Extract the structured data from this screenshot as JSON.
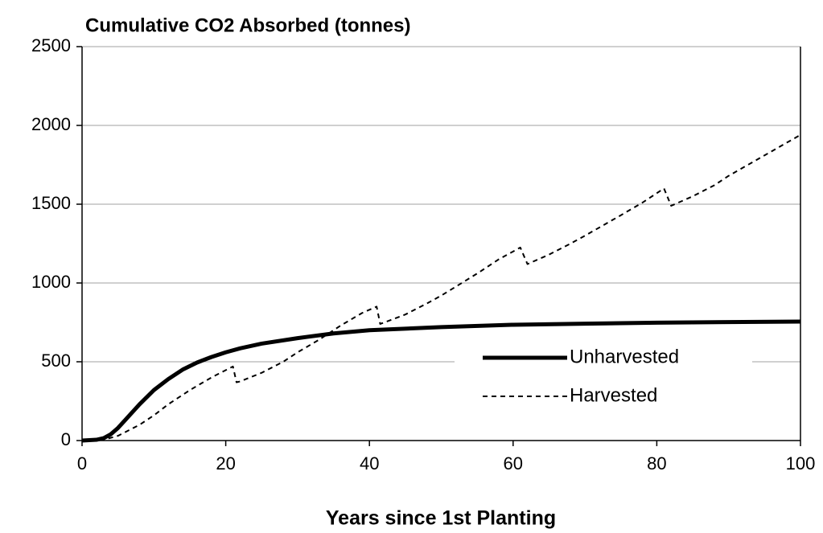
{
  "chart_data": {
    "type": "line",
    "title": "Cumulative CO2 Absorbed (tonnes)",
    "x_label": "Years since 1st Planting",
    "xlim": [
      0,
      100
    ],
    "xticks": [
      0,
      20,
      40,
      60,
      80,
      100
    ],
    "ylim": [
      0,
      2500
    ],
    "yticks": [
      0,
      500,
      1000,
      1500,
      2000,
      2500
    ],
    "grid": true,
    "legend": "lower right",
    "series": [
      {
        "name": "Unharvested",
        "color": "#000000",
        "line_style": "solid",
        "line_width": 5,
        "x": [
          0,
          2,
          3,
          4,
          5,
          6,
          8,
          10,
          12,
          14,
          16,
          18,
          20,
          22,
          25,
          30,
          35,
          40,
          50,
          60,
          70,
          80,
          90,
          100
        ],
        "values": [
          0,
          5,
          15,
          40,
          80,
          130,
          230,
          320,
          390,
          450,
          495,
          530,
          560,
          585,
          615,
          650,
          680,
          700,
          720,
          735,
          742,
          748,
          752,
          755
        ]
      },
      {
        "name": "Harvested",
        "color": "#000000",
        "line_style": "dashed",
        "line_width": 2,
        "x": [
          0,
          3,
          5,
          8,
          10,
          12,
          15,
          18,
          21,
          21.5,
          22,
          25,
          28,
          30,
          33,
          36,
          39,
          41,
          41.5,
          45,
          48,
          50,
          55,
          58,
          61,
          62,
          65,
          68,
          70,
          75,
          78,
          81,
          82,
          85,
          88,
          90,
          95,
          100
        ],
        "values": [
          0,
          5,
          30,
          100,
          160,
          230,
          320,
          400,
          470,
          370,
          375,
          430,
          500,
          560,
          640,
          730,
          810,
          850,
          740,
          800,
          870,
          920,
          1060,
          1150,
          1225,
          1120,
          1180,
          1250,
          1300,
          1430,
          1510,
          1600,
          1490,
          1550,
          1620,
          1680,
          1810,
          1940
        ]
      }
    ]
  }
}
